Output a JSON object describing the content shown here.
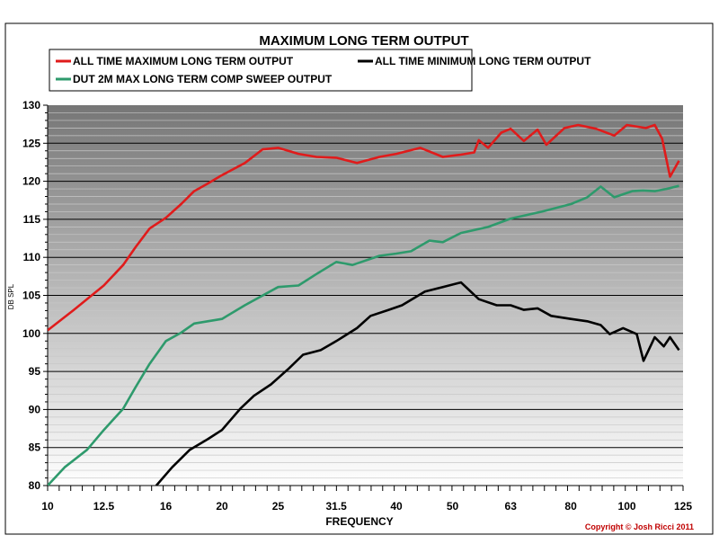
{
  "chart_data": {
    "type": "line",
    "title": "MAXIMUM LONG TERM OUTPUT",
    "xlabel": "FREQUENCY",
    "ylabel": "DB SPL",
    "x_scale": "log",
    "xlim": [
      10,
      125
    ],
    "ylim": [
      80,
      130
    ],
    "x_ticks": [
      "10",
      "12.5",
      "16",
      "20",
      "25",
      "31.5",
      "40",
      "50",
      "63",
      "80",
      "100",
      "125"
    ],
    "x_tick_values": [
      10,
      12.5,
      16,
      20,
      25,
      31.5,
      40,
      50,
      63,
      80,
      100,
      125
    ],
    "y_ticks": [
      80,
      85,
      90,
      95,
      100,
      105,
      110,
      115,
      120,
      125,
      130
    ],
    "grid": true,
    "legend_placement": "top",
    "copyright": "Copyright © Josh Ricci 2011",
    "series": [
      {
        "name": "ALL TIME MAXIMUM LONG TERM OUTPUT",
        "color": "#e01b1b",
        "x": [
          10,
          11.1,
          12.5,
          13.5,
          14.2,
          15.0,
          16,
          17.0,
          17.9,
          18.9,
          20,
          21.9,
          23.5,
          25,
          27.1,
          29.1,
          31.5,
          34.2,
          37.4,
          40,
          44.0,
          48.1,
          51.7,
          54.5,
          55.5,
          57.6,
          60.7,
          63,
          66.4,
          70.1,
          72.6,
          78.0,
          82.4,
          88.5,
          95.1,
          100,
          107.8,
          111.7,
          115,
          118.7,
          123
        ],
        "y": [
          100.4,
          103.1,
          106.3,
          109.0,
          111.4,
          113.8,
          115.2,
          117.0,
          118.7,
          119.7,
          120.8,
          122.4,
          124.2,
          124.4,
          123.6,
          123.2,
          123.1,
          122.4,
          123.2,
          123.6,
          124.4,
          123.2,
          123.5,
          123.8,
          125.4,
          124.4,
          126.4,
          126.9,
          125.3,
          126.8,
          124.8,
          127.0,
          127.4,
          126.9,
          126.0,
          127.4,
          127.0,
          127.4,
          125.6,
          120.6,
          122.7
        ]
      },
      {
        "name": "ALL TIME MINIMUM LONG TERM OUTPUT",
        "color": "#000000",
        "x": [
          15.4,
          16.4,
          17.6,
          18.9,
          20,
          21.5,
          22.7,
          24.3,
          26.1,
          27.6,
          29.6,
          31.5,
          34.2,
          36.1,
          38.8,
          40.9,
          44.8,
          48.1,
          51.7,
          55.5,
          59.6,
          63,
          66.4,
          70.1,
          74.0,
          80,
          85.4,
          90.1,
          93.4,
          98.5,
          104,
          106.8,
          111.7,
          115.8,
          118.7,
          123
        ],
        "y": [
          80,
          82.4,
          84.7,
          86.1,
          87.3,
          90.1,
          91.8,
          93.3,
          95.4,
          97.2,
          97.8,
          99.0,
          100.7,
          102.3,
          103.1,
          103.7,
          105.5,
          106.1,
          106.7,
          104.5,
          103.7,
          103.7,
          103.1,
          103.3,
          102.3,
          101.9,
          101.6,
          101.1,
          99.9,
          100.7,
          99.9,
          96.4,
          99.5,
          98.3,
          99.5,
          97.8
        ]
      },
      {
        "name": "DUT  2M MAX LONG TERM COMP SWEEP OUTPUT",
        "color": "#2e9a6c",
        "x": [
          10,
          10.7,
          11.7,
          12.5,
          13.5,
          14.2,
          15.0,
          16,
          17.0,
          17.9,
          20,
          21.9,
          25,
          27.1,
          29.1,
          31.5,
          33.6,
          37.4,
          40,
          42.4,
          45.6,
          48.1,
          51.7,
          57.6,
          63,
          71.3,
          80,
          85.4,
          90.1,
          95.1,
          102.1,
          106.6,
          111.7,
          117,
          123
        ],
        "y": [
          80,
          82.4,
          84.7,
          87.3,
          90.1,
          93.0,
          96.0,
          99.0,
          100.1,
          101.3,
          101.9,
          103.7,
          106.1,
          106.3,
          107.8,
          109.4,
          109.0,
          110.2,
          110.5,
          110.8,
          112.2,
          112.0,
          113.2,
          114.0,
          115.1,
          116.0,
          117.0,
          117.9,
          119.3,
          117.9,
          118.7,
          118.8,
          118.7,
          119.0,
          119.4
        ]
      }
    ]
  }
}
